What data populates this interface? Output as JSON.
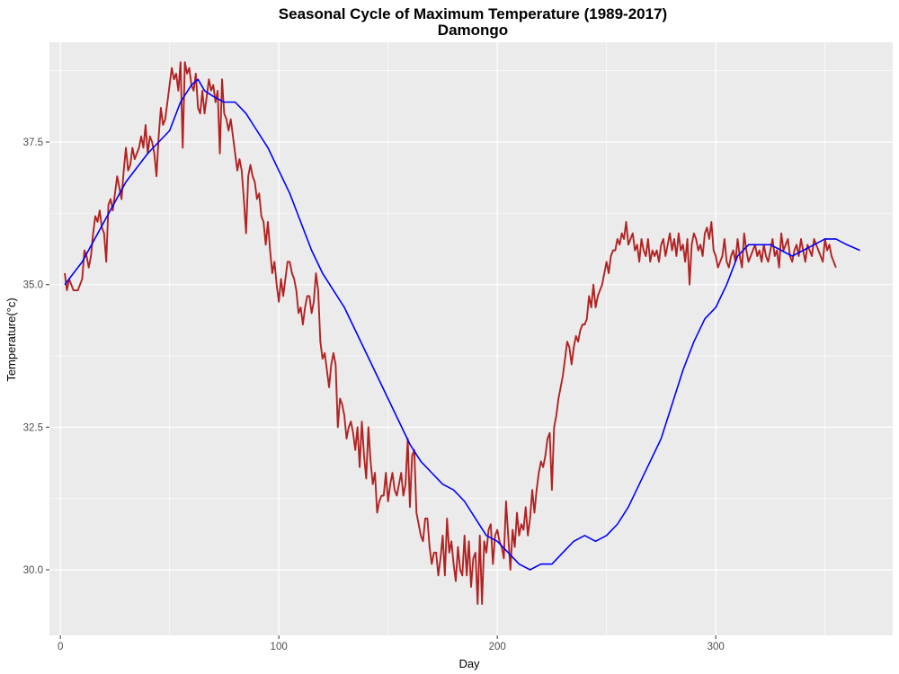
{
  "chart_data": {
    "type": "line",
    "title": "Seasonal Cycle of Maximum Temperature (1989-2017)",
    "subtitle": "Damongo",
    "xlabel": "Day",
    "ylabel": "Temperature(°c)",
    "xlim": [
      -5,
      381
    ],
    "ylim": [
      28.85,
      39.25
    ],
    "x_ticks": [
      0,
      100,
      200,
      300
    ],
    "y_ticks": [
      30.0,
      32.5,
      35.0,
      37.5
    ],
    "x_tick_labels": [
      "0",
      "100",
      "200",
      "300"
    ],
    "y_tick_labels": [
      "30.0",
      "32.5",
      "35.0",
      "37.5"
    ],
    "grid": true,
    "legend": "none",
    "colors": {
      "panel": "#ebebeb",
      "grid": "#ffffff",
      "daily": "#b22222",
      "smooth": "#0000ff"
    },
    "series": [
      {
        "key": "daily",
        "x_start": 2,
        "x_step": 1,
        "values": [
          35.2,
          34.9,
          35.1,
          35.0,
          34.9,
          34.9,
          34.9,
          35.0,
          35.1,
          35.6,
          35.5,
          35.3,
          35.5,
          35.9,
          36.2,
          36.1,
          36.3,
          36.0,
          35.9,
          35.4,
          36.4,
          36.5,
          36.3,
          36.6,
          36.9,
          36.7,
          36.5,
          37.0,
          37.4,
          37.0,
          37.1,
          37.4,
          37.2,
          37.3,
          37.4,
          37.6,
          37.4,
          37.8,
          37.3,
          37.6,
          37.5,
          37.3,
          36.9,
          37.6,
          38.1,
          37.8,
          37.9,
          38.2,
          38.5,
          38.8,
          38.6,
          38.7,
          38.4,
          38.9,
          37.4,
          38.9,
          38.7,
          38.8,
          38.5,
          38.4,
          38.7,
          38.1,
          38.0,
          38.4,
          38.0,
          38.3,
          38.6,
          38.4,
          38.5,
          38.2,
          38.4,
          37.3,
          38.6,
          38.0,
          37.9,
          37.7,
          37.9,
          37.6,
          37.3,
          37.0,
          37.2,
          37.0,
          36.5,
          35.9,
          36.9,
          37.1,
          36.9,
          36.8,
          36.5,
          36.6,
          36.2,
          36.1,
          35.7,
          36.1,
          35.6,
          35.2,
          35.4,
          35.0,
          34.7,
          35.1,
          34.8,
          35.1,
          35.4,
          35.4,
          35.2,
          35.1,
          34.9,
          34.5,
          34.6,
          34.3,
          34.6,
          34.8,
          34.8,
          34.5,
          34.7,
          35.2,
          34.9,
          34.0,
          33.7,
          33.8,
          33.5,
          33.2,
          33.6,
          33.8,
          33.6,
          32.5,
          33.0,
          32.9,
          32.7,
          32.3,
          32.5,
          32.6,
          32.4,
          32.1,
          32.5,
          31.8,
          32.6,
          32.0,
          31.6,
          32.5,
          31.9,
          31.5,
          31.7,
          31.0,
          31.2,
          31.3,
          31.3,
          31.7,
          31.2,
          31.5,
          31.7,
          31.4,
          31.3,
          31.5,
          31.7,
          31.3,
          31.5,
          32.3,
          31.1,
          32.0,
          32.1,
          31.0,
          30.8,
          30.6,
          30.5,
          30.9,
          30.9,
          30.4,
          30.1,
          30.3,
          30.3,
          29.9,
          30.2,
          30.6,
          29.9,
          30.9,
          30.3,
          30.5,
          30.1,
          29.8,
          30.4,
          30.0,
          29.9,
          30.6,
          29.9,
          30.5,
          29.7,
          30.2,
          30.3,
          29.4,
          30.6,
          29.4,
          30.5,
          30.3,
          30.7,
          30.8,
          30.1,
          30.6,
          30.7,
          30.5,
          30.4,
          30.2,
          31.2,
          30.6,
          30.0,
          30.7,
          30.4,
          31.0,
          30.6,
          30.8,
          30.7,
          31.1,
          30.6,
          30.9,
          31.4,
          31.0,
          31.4,
          31.7,
          31.9,
          31.8,
          32.0,
          32.3,
          32.4,
          31.4,
          32.5,
          32.7,
          33.0,
          33.2,
          33.4,
          33.7,
          34.0,
          33.9,
          33.6,
          33.9,
          34.1,
          34.0,
          34.2,
          34.3,
          34.3,
          34.4,
          34.8,
          34.6,
          35.0,
          34.6,
          34.8,
          34.9,
          35.0,
          35.2,
          35.4,
          35.2,
          35.5,
          35.6,
          35.6,
          35.8,
          35.7,
          35.9,
          35.8,
          36.1,
          35.7,
          35.8,
          35.9,
          35.6,
          35.7,
          35.4,
          35.8,
          35.6,
          35.5,
          35.8,
          35.4,
          35.6,
          35.5,
          35.6,
          35.4,
          35.7,
          35.8,
          35.5,
          35.7,
          35.9,
          35.6,
          35.8,
          35.5,
          35.9,
          35.6,
          35.7,
          35.4,
          35.8,
          35.0,
          35.7,
          35.9,
          35.8,
          35.6,
          35.7,
          35.5,
          35.9,
          36.0,
          35.8,
          36.1,
          35.6,
          35.5,
          35.3,
          35.4,
          35.5,
          35.8,
          35.4,
          35.3,
          35.5,
          35.6,
          35.4,
          35.8,
          35.5,
          35.3,
          35.9,
          35.6,
          35.4,
          35.5,
          35.6,
          35.7,
          35.5,
          35.6,
          35.4,
          35.7,
          35.5,
          35.4,
          35.6,
          35.8,
          35.5,
          35.6,
          35.3,
          35.9,
          35.6,
          35.7,
          35.8,
          35.5,
          35.4,
          35.6,
          35.7,
          35.5,
          35.8,
          35.6,
          35.4,
          35.7,
          35.6,
          35.5,
          35.8,
          35.7,
          35.6,
          35.5,
          35.4,
          35.8,
          35.6,
          35.7,
          35.5,
          35.4,
          35.3
        ]
      },
      {
        "key": "smooth",
        "x": [
          2,
          10,
          20,
          30,
          40,
          50,
          55,
          60,
          63,
          66,
          70,
          75,
          80,
          85,
          90,
          95,
          100,
          105,
          110,
          115,
          120,
          125,
          130,
          135,
          140,
          145,
          150,
          155,
          160,
          165,
          170,
          175,
          180,
          185,
          190,
          195,
          200,
          205,
          210,
          215,
          220,
          225,
          230,
          235,
          240,
          245,
          250,
          255,
          260,
          265,
          270,
          275,
          280,
          285,
          290,
          295,
          300,
          305,
          310,
          315,
          320,
          325,
          330,
          335,
          340,
          345,
          350,
          355,
          360,
          366
        ],
        "values": [
          35.0,
          35.4,
          36.1,
          36.8,
          37.3,
          37.7,
          38.2,
          38.5,
          38.6,
          38.4,
          38.3,
          38.2,
          38.2,
          38.0,
          37.7,
          37.4,
          37.0,
          36.6,
          36.1,
          35.6,
          35.2,
          34.9,
          34.6,
          34.2,
          33.8,
          33.4,
          33.0,
          32.6,
          32.2,
          31.9,
          31.7,
          31.5,
          31.4,
          31.2,
          30.9,
          30.6,
          30.5,
          30.3,
          30.1,
          30.0,
          30.1,
          30.1,
          30.3,
          30.5,
          30.6,
          30.5,
          30.6,
          30.8,
          31.1,
          31.5,
          31.9,
          32.3,
          32.9,
          33.5,
          34.0,
          34.4,
          34.6,
          35.0,
          35.5,
          35.7,
          35.7,
          35.7,
          35.6,
          35.5,
          35.6,
          35.7,
          35.8,
          35.8,
          35.7,
          35.6
        ]
      }
    ]
  }
}
